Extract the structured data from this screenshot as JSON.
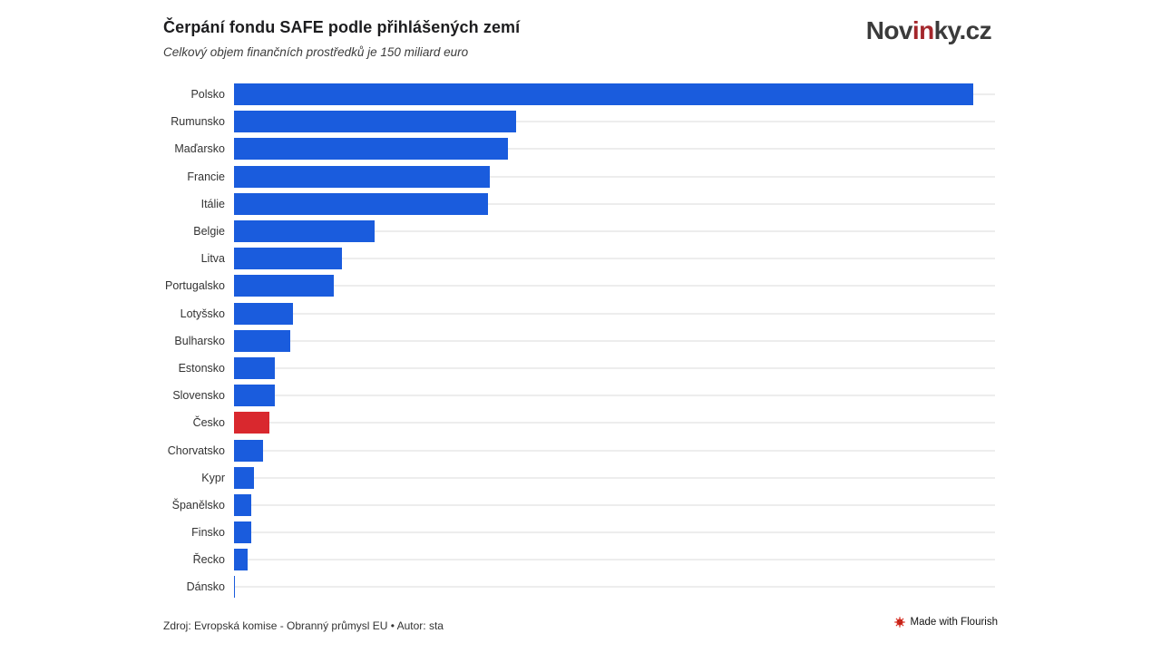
{
  "header": {
    "title": "Čerpání fondu SAFE podle přihlášených zemí",
    "subtitle": "Celkový objem finančních prostředků je 150 miliard euro"
  },
  "logo": {
    "part1": "Nov",
    "part2": "in",
    "part3": "ky.cz",
    "text_color": "#3b3b3b",
    "accent_color": "#a4262b"
  },
  "footer": {
    "source": "Zdroj: Evropská komise - Obranný průmysl EU • Autor: sta",
    "badge_label": "Made with Flourish"
  },
  "chart_data": {
    "type": "bar",
    "orientation": "horizontal",
    "title": "Čerpání fondu SAFE podle přihlášených zemí",
    "subtitle": "Celkový objem finančních prostředků je 150 miliard euro",
    "unit": "miliard euro",
    "categories": [
      "Polsko",
      "Rumunsko",
      "Maďarsko",
      "Francie",
      "Itálie",
      "Belgie",
      "Litva",
      "Portugalsko",
      "Lotyšsko",
      "Bulharsko",
      "Estonsko",
      "Slovensko",
      "Česko",
      "Chorvatsko",
      "Kypr",
      "Španělsko",
      "Finsko",
      "Řecko",
      "Dánsko"
    ],
    "values": [
      43.7,
      16.7,
      16.2,
      15.1,
      15.0,
      8.3,
      6.4,
      5.9,
      3.5,
      3.3,
      2.4,
      2.4,
      2.1,
      1.7,
      1.2,
      1.0,
      1.0,
      0.8,
      0.05
    ],
    "xlim": [
      0,
      45
    ],
    "bar_color": "#1a5cdd",
    "highlight": {
      "category": "Česko",
      "color": "#d9282e"
    },
    "grid": true,
    "gridline_color": "#ededed",
    "axis_tick_labels_visible": false,
    "legend": "none"
  }
}
